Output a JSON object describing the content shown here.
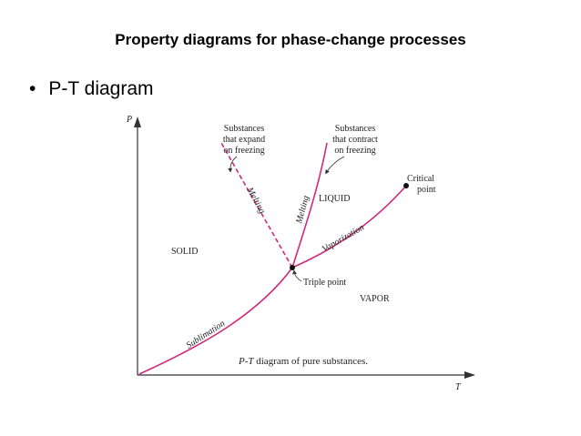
{
  "slide": {
    "title": "Property diagrams for phase-change processes",
    "bullet": "P-T diagram"
  },
  "diagram": {
    "axis_y": "P",
    "axis_x": "T",
    "regions": {
      "solid": "SOLID",
      "liquid": "LIQUID",
      "vapor": "VAPOR"
    },
    "curves": {
      "melting_expand": "Melting",
      "melting_contract": "Melting",
      "vaporization": "Vaporization",
      "sublimation": "Sublimation"
    },
    "notes": {
      "expand": [
        "Substances",
        "that expand",
        "on freezing"
      ],
      "contract": [
        "Substances",
        "that contract",
        "on freezing"
      ],
      "critical": [
        "Critical",
        "point"
      ],
      "triple": "Triple point"
    },
    "caption_italic": "P-T",
    "caption_rest": " diagram of pure substances.",
    "colors": {
      "curve": "#d0287c"
    }
  }
}
